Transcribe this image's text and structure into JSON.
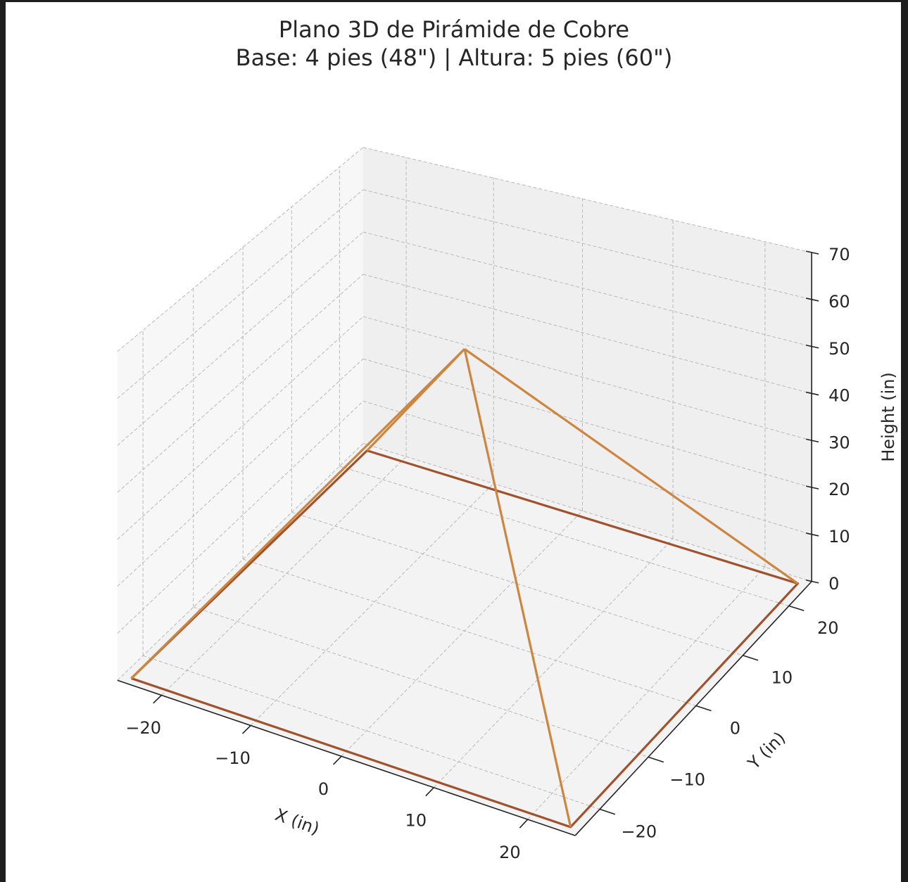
{
  "chart_data": {
    "type": "line3d",
    "title": "Plano 3D de Pirámide de Cobre",
    "subtitle": "Base: 4 pies (48\") | Altura: 5 pies (60\")",
    "xlabel": "X (in)",
    "ylabel": "Y (in)",
    "zlabel": "Height (in)",
    "xticks": [
      -20,
      -10,
      0,
      10,
      20
    ],
    "yticks": [
      -20,
      -10,
      0,
      10,
      20
    ],
    "zticks": [
      0,
      10,
      20,
      30,
      40,
      50,
      60,
      70
    ],
    "xlim": [
      -25,
      25
    ],
    "ylim": [
      -25,
      25
    ],
    "zlim": [
      0,
      70
    ],
    "grid": true,
    "base_color": "#A0522D",
    "edge_color": "#CD853F",
    "base": [
      [
        -24,
        -24,
        0
      ],
      [
        24,
        -24,
        0
      ],
      [
        24,
        24,
        0
      ],
      [
        -24,
        24,
        0
      ],
      [
        -24,
        -24,
        0
      ]
    ],
    "apex": [
      0,
      0,
      60
    ],
    "edges": [
      [
        [
          -24,
          -24,
          0
        ],
        [
          0,
          0,
          60
        ]
      ],
      [
        [
          24,
          -24,
          0
        ],
        [
          0,
          0,
          60
        ]
      ],
      [
        [
          24,
          24,
          0
        ],
        [
          0,
          0,
          60
        ]
      ],
      [
        [
          -24,
          24,
          0
        ],
        [
          0,
          0,
          60
        ]
      ]
    ]
  }
}
